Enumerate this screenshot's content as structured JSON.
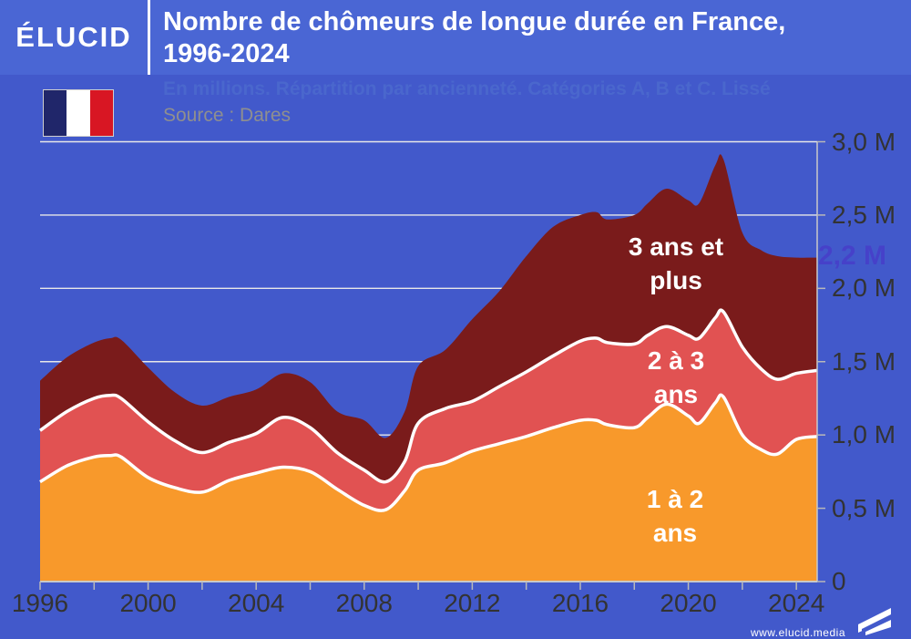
{
  "header": {
    "logo": "ÉLUCID",
    "title_line1": "Nombre de chômeurs de longue durée en France,",
    "title_line2": "1996-2024"
  },
  "subheader": {
    "subtitle": "En millions. Répartition par ancienneté. Catégories A, B et C. Lissé",
    "source": "Source : Dares"
  },
  "footer": {
    "watermark": "www.elucid.media"
  },
  "annotation": {
    "label": "2,2 M",
    "value": 2.21,
    "color": "#4641C9"
  },
  "colors": {
    "header_blue": "#4A66D4",
    "frame_blue": "#4259CB",
    "subtitle_blue": "#4A67CD",
    "flag_navy": "#20266A",
    "flag_red": "#D81623",
    "grid": "#E8E8E8",
    "axis": "#C9C9C9",
    "tick": "#B9B9B9",
    "tick_text": "#333333"
  },
  "chart_data": {
    "type": "area",
    "stacked": true,
    "title": "Nombre de chômeurs de longue durée en France, 1996-2024",
    "unit": "millions",
    "xlim": [
      1996,
      2024.77
    ],
    "ylim": [
      0,
      3.0
    ],
    "grid": true,
    "x": [
      1996,
      1997,
      1998,
      1998.6,
      1999,
      2000,
      2001,
      2002,
      2003,
      2004,
      2005,
      2006,
      2007,
      2008,
      2008.8,
      2009.5,
      2010,
      2011,
      2012,
      2013,
      2014,
      2015,
      2016,
      2016.6,
      2017,
      2018,
      2018.5,
      2019.2,
      2020,
      2020.4,
      2021,
      2021.3,
      2022,
      2022.7,
      2023.3,
      2024,
      2024.77
    ],
    "series": [
      {
        "name": "1 à 2 ans",
        "label_lines": [
          "1 à 2",
          "ans"
        ],
        "color": "#F8992B",
        "values": [
          0.68,
          0.79,
          0.85,
          0.86,
          0.85,
          0.71,
          0.64,
          0.61,
          0.69,
          0.74,
          0.78,
          0.75,
          0.63,
          0.52,
          0.49,
          0.62,
          0.76,
          0.81,
          0.89,
          0.94,
          0.99,
          1.05,
          1.1,
          1.1,
          1.07,
          1.05,
          1.12,
          1.21,
          1.13,
          1.08,
          1.22,
          1.26,
          1.0,
          0.9,
          0.87,
          0.97,
          0.99
        ]
      },
      {
        "name": "2 à 3 ans",
        "label_lines": [
          "2 à 3",
          "ans"
        ],
        "color": "#E15252",
        "values": [
          0.35,
          0.37,
          0.4,
          0.41,
          0.4,
          0.38,
          0.32,
          0.27,
          0.26,
          0.27,
          0.34,
          0.3,
          0.25,
          0.24,
          0.19,
          0.2,
          0.32,
          0.37,
          0.34,
          0.39,
          0.44,
          0.49,
          0.54,
          0.56,
          0.56,
          0.57,
          0.56,
          0.53,
          0.55,
          0.58,
          0.58,
          0.58,
          0.6,
          0.55,
          0.51,
          0.45,
          0.45
        ]
      },
      {
        "name": "3 ans et plus",
        "label_lines": [
          "3 ans et",
          "plus"
        ],
        "color": "#7A1B1B",
        "values": [
          0.34,
          0.37,
          0.38,
          0.39,
          0.4,
          0.37,
          0.33,
          0.32,
          0.31,
          0.3,
          0.3,
          0.31,
          0.28,
          0.34,
          0.3,
          0.34,
          0.39,
          0.4,
          0.56,
          0.65,
          0.79,
          0.88,
          0.86,
          0.86,
          0.84,
          0.88,
          0.9,
          0.94,
          0.92,
          0.92,
          1.04,
          1.04,
          0.78,
          0.81,
          0.84,
          0.79,
          0.77
        ]
      }
    ],
    "x_ticks_labeled": [
      1996,
      2000,
      2004,
      2008,
      2012,
      2016,
      2020,
      2024
    ],
    "x_tick_minor_step": 2,
    "y_ticks": [
      {
        "v": 0,
        "label": "0"
      },
      {
        "v": 0.5,
        "label": "0,5 M"
      },
      {
        "v": 1.0,
        "label": "1,0 M"
      },
      {
        "v": 1.5,
        "label": "1,5 M"
      },
      {
        "v": 2.0,
        "label": "2,0 M"
      },
      {
        "v": 2.5,
        "label": "2,5 M"
      },
      {
        "v": 3.0,
        "label": "3,0 M"
      }
    ],
    "legend_position": "labels-inside-areas",
    "annotation": {
      "label": "2,2 M",
      "value": 2.21,
      "x": 2024.77
    }
  }
}
